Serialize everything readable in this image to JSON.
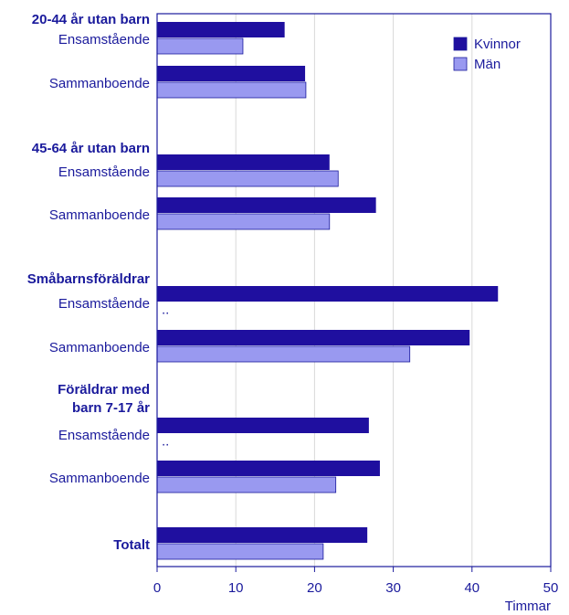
{
  "chart_data": {
    "type": "bar",
    "orientation": "horizontal",
    "groups": [
      {
        "label": [
          "20-44 år utan barn"
        ],
        "rows": [
          0,
          1
        ]
      },
      {
        "label": [
          "45-64 år utan barn"
        ],
        "rows": [
          2,
          3
        ]
      },
      {
        "label": [
          "Småbarnsföräldrar"
        ],
        "rows": [
          4,
          5
        ]
      },
      {
        "label": [
          "Föräldrar med",
          "barn 7-17 år"
        ],
        "rows": [
          6,
          7
        ]
      }
    ],
    "categories": [
      "Ensamstående",
      "Sammanboende",
      "Ensamstående",
      "Sammanboende",
      "Ensamstående",
      "Sammanboende",
      "Ensamstående",
      "Sammanboende",
      "Totalt"
    ],
    "series": [
      {
        "name": "Kvinnor",
        "color": "#1f0f9f",
        "values": [
          16.2,
          18.8,
          21.9,
          27.8,
          43.3,
          39.7,
          26.9,
          28.3,
          26.7
        ]
      },
      {
        "name": "Män",
        "color": "#9999f0",
        "values": [
          10.9,
          18.9,
          23.0,
          21.9,
          null,
          32.1,
          null,
          22.7,
          21.1
        ],
        "value_labels": [
          null,
          null,
          null,
          null,
          "..",
          null,
          "..",
          null,
          null
        ]
      }
    ],
    "xlim": [
      0,
      50
    ],
    "xticks": [
      0,
      10,
      20,
      30,
      40,
      50
    ],
    "x_label": "Timmar",
    "grid": true,
    "legend": "top-right"
  }
}
